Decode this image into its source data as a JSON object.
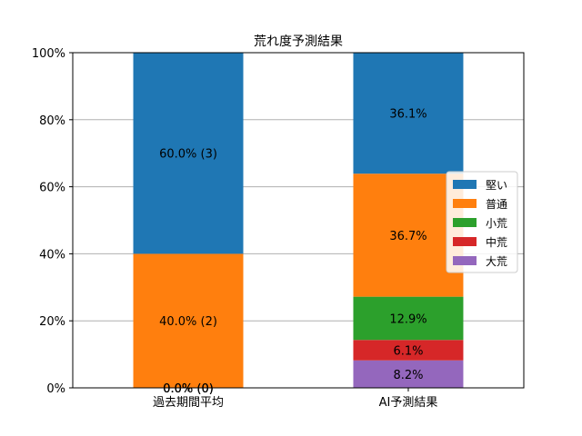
{
  "chart_data": {
    "type": "bar",
    "stacked": true,
    "percent": true,
    "title": "荒れ度予測結果",
    "xlabel": "",
    "ylabel": "",
    "ylim": [
      0,
      100
    ],
    "yticks": [
      0,
      20,
      40,
      60,
      80,
      100
    ],
    "ytick_labels": [
      "0%",
      "20%",
      "40%",
      "60%",
      "80%",
      "100%"
    ],
    "grid": "y",
    "categories": [
      "過去期間平均",
      "AI予測結果"
    ],
    "series": [
      {
        "name": "大荒",
        "color": "#9467bd",
        "values": [
          0.0,
          8.2
        ],
        "labels": [
          "0.0% (0)",
          "8.2%"
        ]
      },
      {
        "name": "中荒",
        "color": "#d62728",
        "values": [
          0.0,
          6.1
        ],
        "labels": [
          "0.0% (0)",
          "6.1%"
        ]
      },
      {
        "name": "小荒",
        "color": "#2ca02c",
        "values": [
          0.0,
          12.9
        ],
        "labels": [
          "0.0% (0)",
          "12.9%"
        ]
      },
      {
        "name": "普通",
        "color": "#ff7f0e",
        "values": [
          40.0,
          36.7
        ],
        "labels": [
          "40.0% (2)",
          "36.7%"
        ]
      },
      {
        "name": "堅い",
        "color": "#1f77b4",
        "values": [
          60.0,
          36.1
        ],
        "labels": [
          "60.0% (3)",
          "36.1%"
        ]
      }
    ],
    "legend": {
      "placement": "right",
      "order": [
        "堅い",
        "普通",
        "小荒",
        "中荒",
        "大荒"
      ]
    }
  }
}
